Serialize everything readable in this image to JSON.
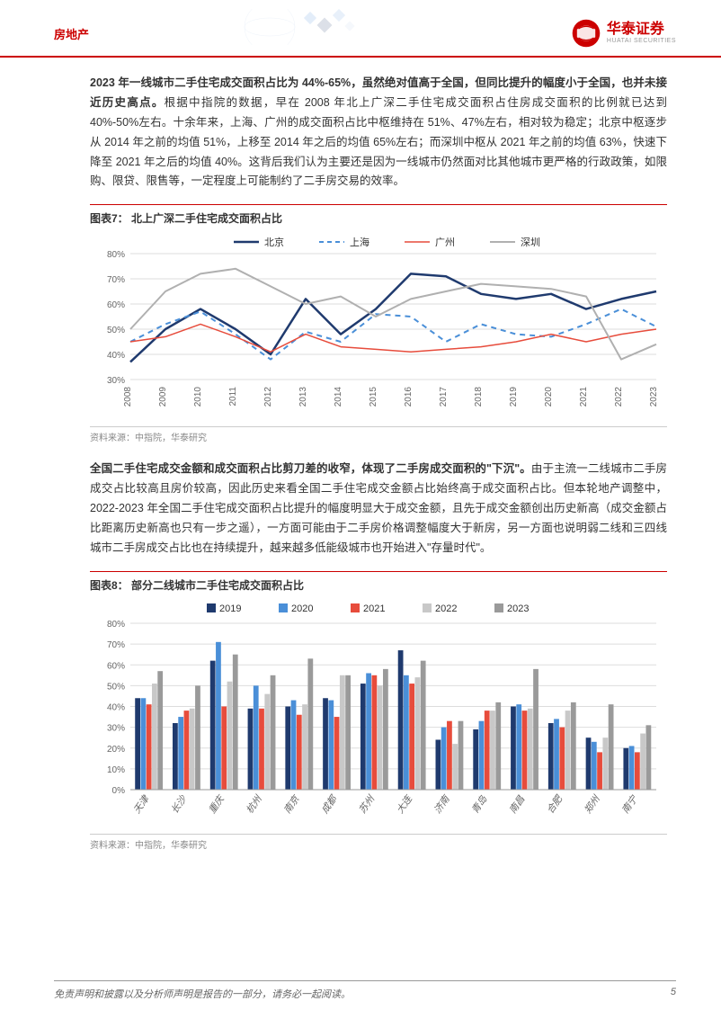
{
  "header": {
    "category": "房地产",
    "logo_cn": "华泰证券",
    "logo_en": "HUATAI SECURITIES"
  },
  "para1": {
    "bold": "2023 年一线城市二手住宅成交面积占比为 44%-65%，虽然绝对值高于全国，但同比提升的幅度小于全国，也并未接近历史高点。",
    "rest": "根据中指院的数据，早在 2008 年北上广深二手住宅成交面积占住房成交面积的比例就已达到 40%-50%左右。十余年来，上海、广州的成交面积占比中枢维持在 51%、47%左右，相对较为稳定；北京中枢逐步从 2014 年之前的均值 51%，上移至 2014 年之后的均值 65%左右；而深圳中枢从 2021 年之前的均值 63%，快速下降至 2021 年之后的均值 40%。这背后我们认为主要还是因为一线城市仍然面对比其他城市更严格的行政政策，如限购、限贷、限售等，一定程度上可能制约了二手房交易的效率。"
  },
  "chart7": {
    "title": "图表7：  北上广深二手住宅成交面积占比",
    "type": "line",
    "source": "资料来源：中指院，华泰研究",
    "legend": [
      "北京",
      "上海",
      "广州",
      "深圳"
    ],
    "colors": [
      "#1f3a6e",
      "#4a8fd8",
      "#e74c3c",
      "#b0b0b0"
    ],
    "line_styles": [
      "solid",
      "dashed",
      "solid",
      "solid"
    ],
    "line_widths": [
      2.5,
      2,
      1.5,
      2
    ],
    "years": [
      "2008",
      "2009",
      "2010",
      "2011",
      "2012",
      "2013",
      "2014",
      "2015",
      "2016",
      "2017",
      "2018",
      "2019",
      "2020",
      "2021",
      "2022",
      "2023"
    ],
    "ylim": [
      30,
      80
    ],
    "ytick_step": 10,
    "ytick_format": "%",
    "grid_color": "#dddddd",
    "background": "#ffffff",
    "series": {
      "北京": [
        37,
        50,
        58,
        50,
        40,
        62,
        48,
        58,
        72,
        71,
        64,
        62,
        64,
        58,
        62,
        65
      ],
      "上海": [
        45,
        52,
        57,
        48,
        38,
        49,
        45,
        56,
        55,
        45,
        52,
        48,
        47,
        52,
        58,
        51
      ],
      "广州": [
        45,
        47,
        52,
        47,
        41,
        48,
        43,
        42,
        41,
        42,
        43,
        45,
        48,
        45,
        48,
        50
      ],
      "深圳": [
        50,
        65,
        72,
        74,
        67,
        60,
        63,
        55,
        62,
        65,
        68,
        67,
        66,
        63,
        38,
        44
      ]
    }
  },
  "para2": {
    "bold": "全国二手住宅成交金额和成交面积占比剪刀差的收窄，体现了二手房成交面积的\"下沉\"。",
    "rest": "由于主流一二线城市二手房成交占比较高且房价较高，因此历史来看全国二手住宅成交金额占比始终高于成交面积占比。但本轮地产调整中，2022-2023 年全国二手住宅成交面积占比提升的幅度明显大于成交金额，且先于成交金额创出历史新高（成交金额占比距离历史新高也只有一步之遥），一方面可能由于二手房价格调整幅度大于新房，另一方面也说明弱二线和三四线城市二手房成交占比也在持续提升，越来越多低能级城市也开始进入\"存量时代\"。"
  },
  "chart8": {
    "title": "图表8：  部分二线城市二手住宅成交面积占比",
    "type": "bar",
    "source": "资料来源：中指院，华泰研究",
    "legend": [
      "2019",
      "2020",
      "2021",
      "2022",
      "2023"
    ],
    "colors": [
      "#1f3a6e",
      "#4a8fd8",
      "#e74c3c",
      "#c8c8c8",
      "#9a9a9a"
    ],
    "cities": [
      "天津",
      "长沙",
      "重庆",
      "杭州",
      "南京",
      "成都",
      "苏州",
      "大连",
      "济南",
      "青岛",
      "南昌",
      "合肥",
      "郑州",
      "南宁"
    ],
    "ylim": [
      0,
      80
    ],
    "ytick_step": 10,
    "ytick_format": "%",
    "grid_color": "#dddddd",
    "background": "#ffffff",
    "bar_group_width": 0.75,
    "values": {
      "天津": [
        44,
        44,
        41,
        51,
        57
      ],
      "长沙": [
        32,
        35,
        38,
        39,
        50
      ],
      "重庆": [
        62,
        71,
        40,
        52,
        65
      ],
      "杭州": [
        39,
        50,
        39,
        46,
        55
      ],
      "南京": [
        40,
        43,
        36,
        41,
        63
      ],
      "成都": [
        44,
        43,
        35,
        55,
        55
      ],
      "苏州": [
        51,
        56,
        55,
        50,
        58
      ],
      "大连": [
        67,
        55,
        51,
        54,
        62
      ],
      "济南": [
        24,
        30,
        33,
        22,
        33
      ],
      "青岛": [
        29,
        33,
        38,
        38,
        42
      ],
      "南昌": [
        40,
        41,
        38,
        39,
        58
      ],
      "合肥": [
        32,
        34,
        30,
        38,
        42
      ],
      "郑州": [
        25,
        23,
        18,
        25,
        41
      ],
      "南宁": [
        20,
        21,
        18,
        27,
        31
      ]
    }
  },
  "footer": {
    "disclaimer": "免责声明和披露以及分析师声明是报告的一部分，请务必一起阅读。",
    "page": "5"
  }
}
